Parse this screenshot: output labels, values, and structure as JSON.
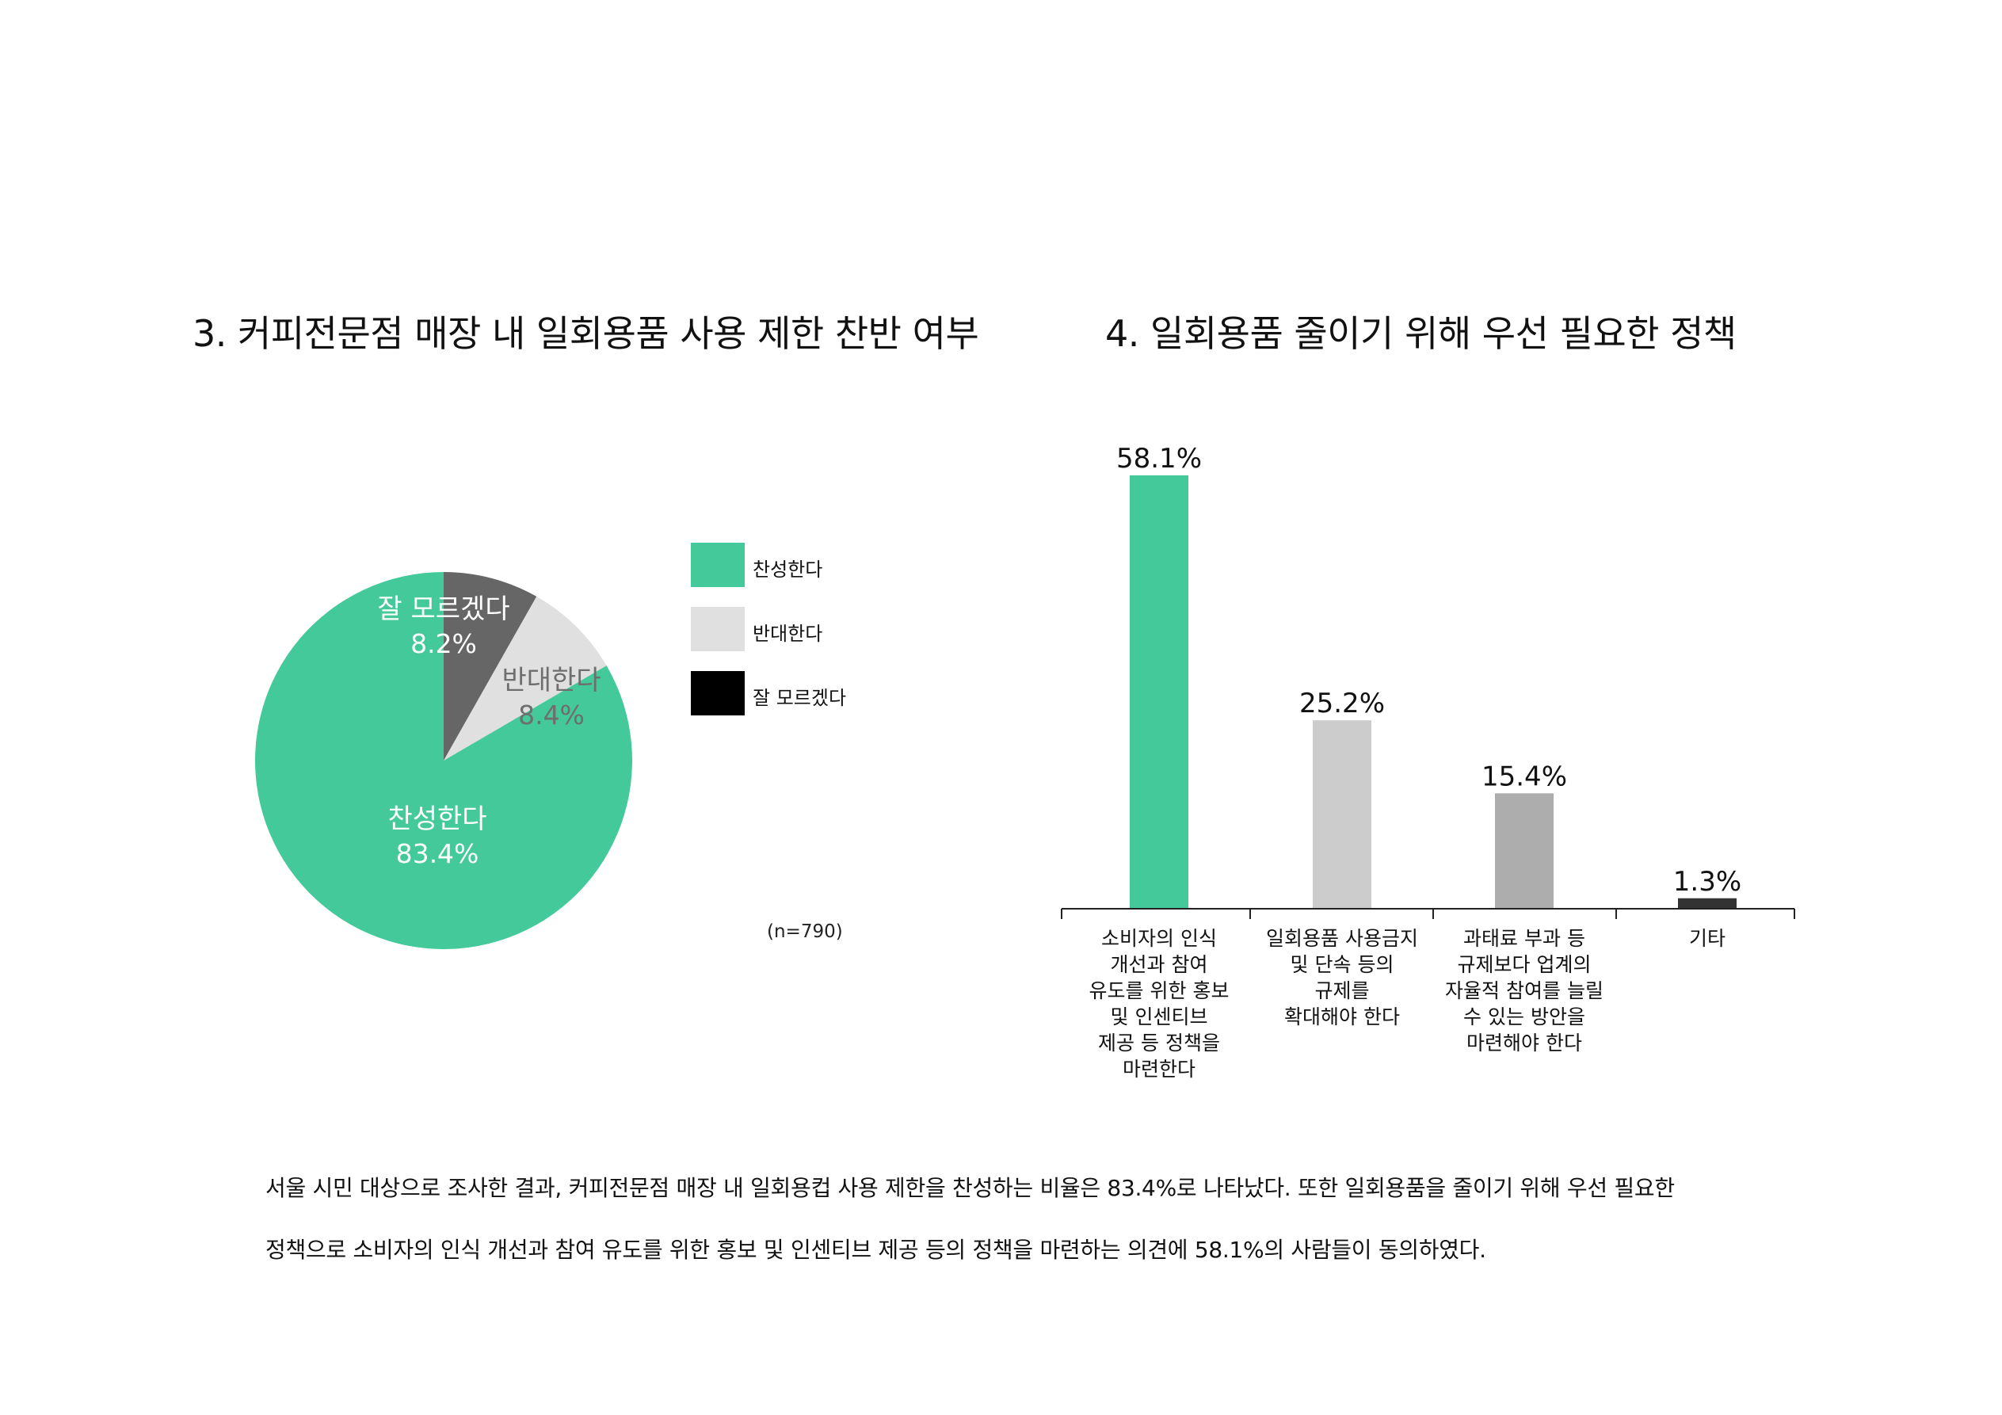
{
  "pie_title": "3. 커피전문점 매장 내  일회용품 사용 제한 찬반 여부",
  "bar_title": "4. 일회용품 줄이기 위해 우선 필요한 정책",
  "sample_note": "(n=790)",
  "legend": [
    {
      "label": "찬성한다",
      "color": "#44c99b"
    },
    {
      "label": "반대한다",
      "color": "#e0e0e0"
    },
    {
      "label": "잘 모르겠다",
      "color": "#000000"
    }
  ],
  "caption": {
    "line1": "서울 시민 대상으로 조사한 결과, 커피전문점 매장 내 일회용컵 사용 제한을 찬성하는 비율은 83.4%로 나타났다. 또한 일회용품을 줄이기 위해 우선 필요한",
    "line2": "정책으로 소비자의 인식 개선과 참여 유도를 위한 홍보 및 인센티브 제공 등의 정책을 마련하는 의견에 58.1%의 사람들이 동의하였다."
  },
  "chart_data": [
    {
      "type": "pie",
      "title": "3. 커피전문점 매장 내  일회용품 사용 제한 찬반 여부",
      "slices": [
        {
          "label": "잘 모르겠다",
          "value": 8.2,
          "value_label": "8.2%",
          "color": "#666666",
          "text_color": "#ffffff"
        },
        {
          "label": "반대한다",
          "value": 8.4,
          "value_label": "8.4%",
          "color": "#e0e0e0",
          "text_color": "#6e6e6e"
        },
        {
          "label": "찬성한다",
          "value": 83.4,
          "value_label": "83.4%",
          "color": "#44c99b",
          "text_color": "#ffffff"
        }
      ],
      "start": "12 o'clock",
      "direction": "clockwise",
      "legend_position": "right"
    },
    {
      "type": "bar",
      "title": "4. 일회용품 줄이기 위해 우선 필요한 정책",
      "categories": [
        "소비자의 인식\n개선과 참여\n유도를 위한 홍보\n및 인센티브\n제공 등 정책을\n마련한다",
        "일회용품 사용금지\n및 단속 등의\n규제를\n확대해야 한다",
        "과태료 부과 등\n규제보다 업계의\n자율적 참여를 늘릴\n수 있는 방안을\n마련해야 한다",
        "기타"
      ],
      "values": [
        58.1,
        25.2,
        15.4,
        1.3
      ],
      "value_labels": [
        "58.1%",
        "25.2%",
        "15.4%",
        "1.3%"
      ],
      "colors": [
        "#44c99b",
        "#cccccc",
        "#adadad",
        "#333333"
      ],
      "ylim": [
        0,
        58.1
      ],
      "grid": false
    }
  ]
}
